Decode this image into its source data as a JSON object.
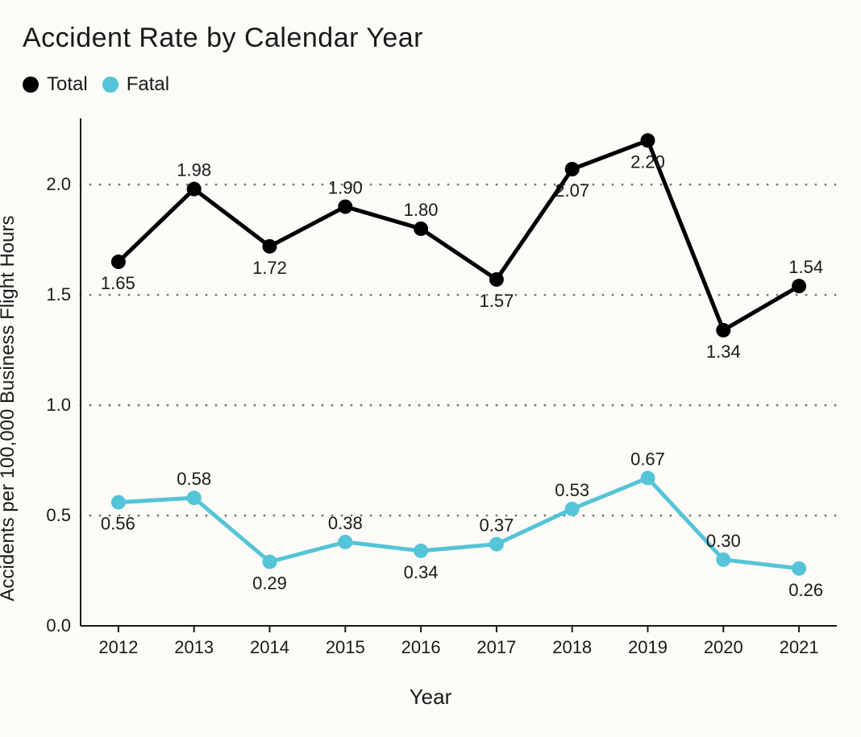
{
  "chart": {
    "type": "line",
    "title": "Accident Rate by Calendar Year",
    "background_color": "#fcfbf7",
    "x_axis": {
      "label": "Year",
      "categories": [
        "2012",
        "2013",
        "2014",
        "2015",
        "2016",
        "2017",
        "2018",
        "2019",
        "2020",
        "2021"
      ],
      "tick_fontsize": 22,
      "label_fontsize": 26
    },
    "y_axis": {
      "label": "Accidents per 100,000 Business Flight Hours",
      "min": 0.0,
      "max": 2.3,
      "ticks": [
        0.0,
        0.5,
        1.0,
        1.5,
        2.0
      ],
      "tick_labels": [
        "0.0",
        "0.5",
        "1.0",
        "1.5",
        "2.0"
      ],
      "grid_style": "dotted",
      "grid_color": "#777777",
      "tick_fontsize": 22,
      "label_fontsize": 24
    },
    "legend": {
      "items": [
        {
          "label": "Total",
          "color": "#000000"
        },
        {
          "label": "Fatal",
          "color": "#55c4d8"
        }
      ],
      "marker_shape": "circle",
      "marker_size": 20,
      "fontsize": 24
    },
    "series": [
      {
        "name": "Total",
        "color": "#000000",
        "line_width": 5,
        "marker_size": 9,
        "values": [
          1.65,
          1.98,
          1.72,
          1.9,
          1.8,
          1.57,
          2.07,
          2.2,
          1.34,
          1.54
        ],
        "label_positions": [
          "below",
          "above",
          "below",
          "above",
          "above",
          "below",
          "below",
          "below",
          "below",
          "above"
        ]
      },
      {
        "name": "Fatal",
        "color": "#55c4d8",
        "line_width": 5,
        "marker_size": 9,
        "values": [
          0.56,
          0.58,
          0.29,
          0.38,
          0.34,
          0.37,
          0.53,
          0.67,
          0.3,
          0.26
        ],
        "label_positions": [
          "below",
          "above",
          "below",
          "above",
          "below",
          "above",
          "above",
          "above",
          "above",
          "below"
        ]
      }
    ],
    "title_fontsize": 34,
    "data_label_fontsize": 22
  }
}
